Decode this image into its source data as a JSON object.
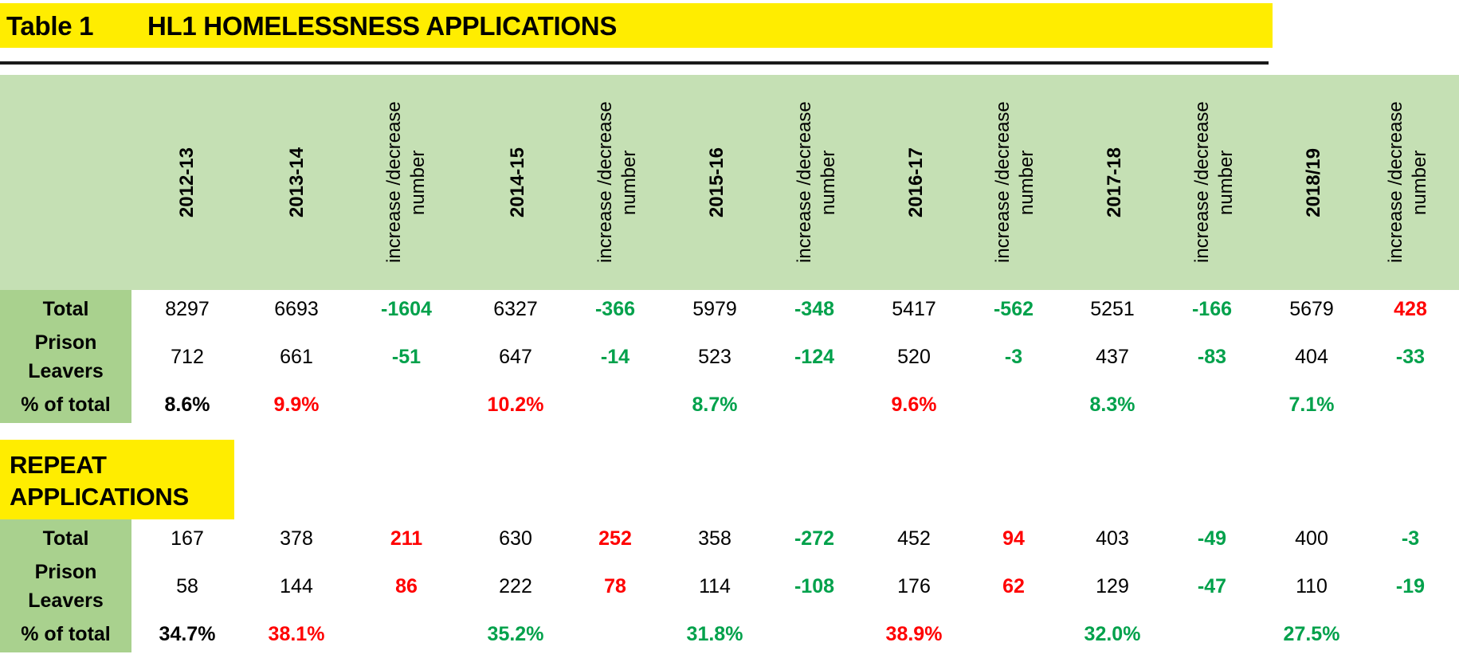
{
  "title": {
    "table_label": "Table 1",
    "heading": "HL1 HOMELESSNESS APPLICATIONS"
  },
  "columns": [
    "2012-13",
    "2013-14",
    "increase /decrease number",
    "2014-15",
    "increase /decrease number",
    "2015-16",
    "increase /decrease number",
    "2016-17",
    "increase /decrease number",
    "2017-18",
    "increase /decrease number",
    "2018/19",
    "increase /decrease number"
  ],
  "section1": {
    "rows": [
      {
        "label": "Total",
        "cells": [
          "8297",
          "6693",
          "-1604",
          "6327",
          "-366",
          "5979",
          "-348",
          "5417",
          "-562",
          "5251",
          "-166",
          "5679",
          "428"
        ]
      },
      {
        "label": "Prison Leavers",
        "cells": [
          "712",
          "661",
          "-51",
          "647",
          "-14",
          "523",
          "-124",
          "520",
          "-3",
          "437",
          "-83",
          "404",
          "-33"
        ]
      },
      {
        "label": "% of total",
        "cells": [
          "8.6%",
          "9.9%",
          "",
          "10.2%",
          "",
          "8.7%",
          "",
          "9.6%",
          "",
          "8.3%",
          "",
          "7.1%",
          ""
        ]
      }
    ]
  },
  "section2": {
    "heading_line1": "REPEAT",
    "heading_line2": "APPLICATIONS",
    "rows": [
      {
        "label": "Total",
        "cells": [
          "167",
          "378",
          "211",
          "630",
          "252",
          "358",
          "-272",
          "452",
          "94",
          "403",
          "-49",
          "400",
          "-3"
        ]
      },
      {
        "label": "Prison Leavers",
        "cells": [
          "58",
          "144",
          "86",
          "222",
          "78",
          "114",
          "-108",
          "176",
          "62",
          "129",
          "-47",
          "110",
          "-19"
        ]
      },
      {
        "label": "% of total",
        "cells": [
          "34.7%",
          "38.1%",
          "",
          "35.2%",
          "",
          "31.8%",
          "",
          "38.9%",
          "",
          "32.0%",
          "",
          "27.5%",
          ""
        ]
      }
    ]
  },
  "colors": {
    "yellow": "#ffed00",
    "header_green": "#c5e0b4",
    "label_green": "#a9d18e",
    "increase_red": "#ff0000",
    "decrease_green": "#00a14b"
  }
}
